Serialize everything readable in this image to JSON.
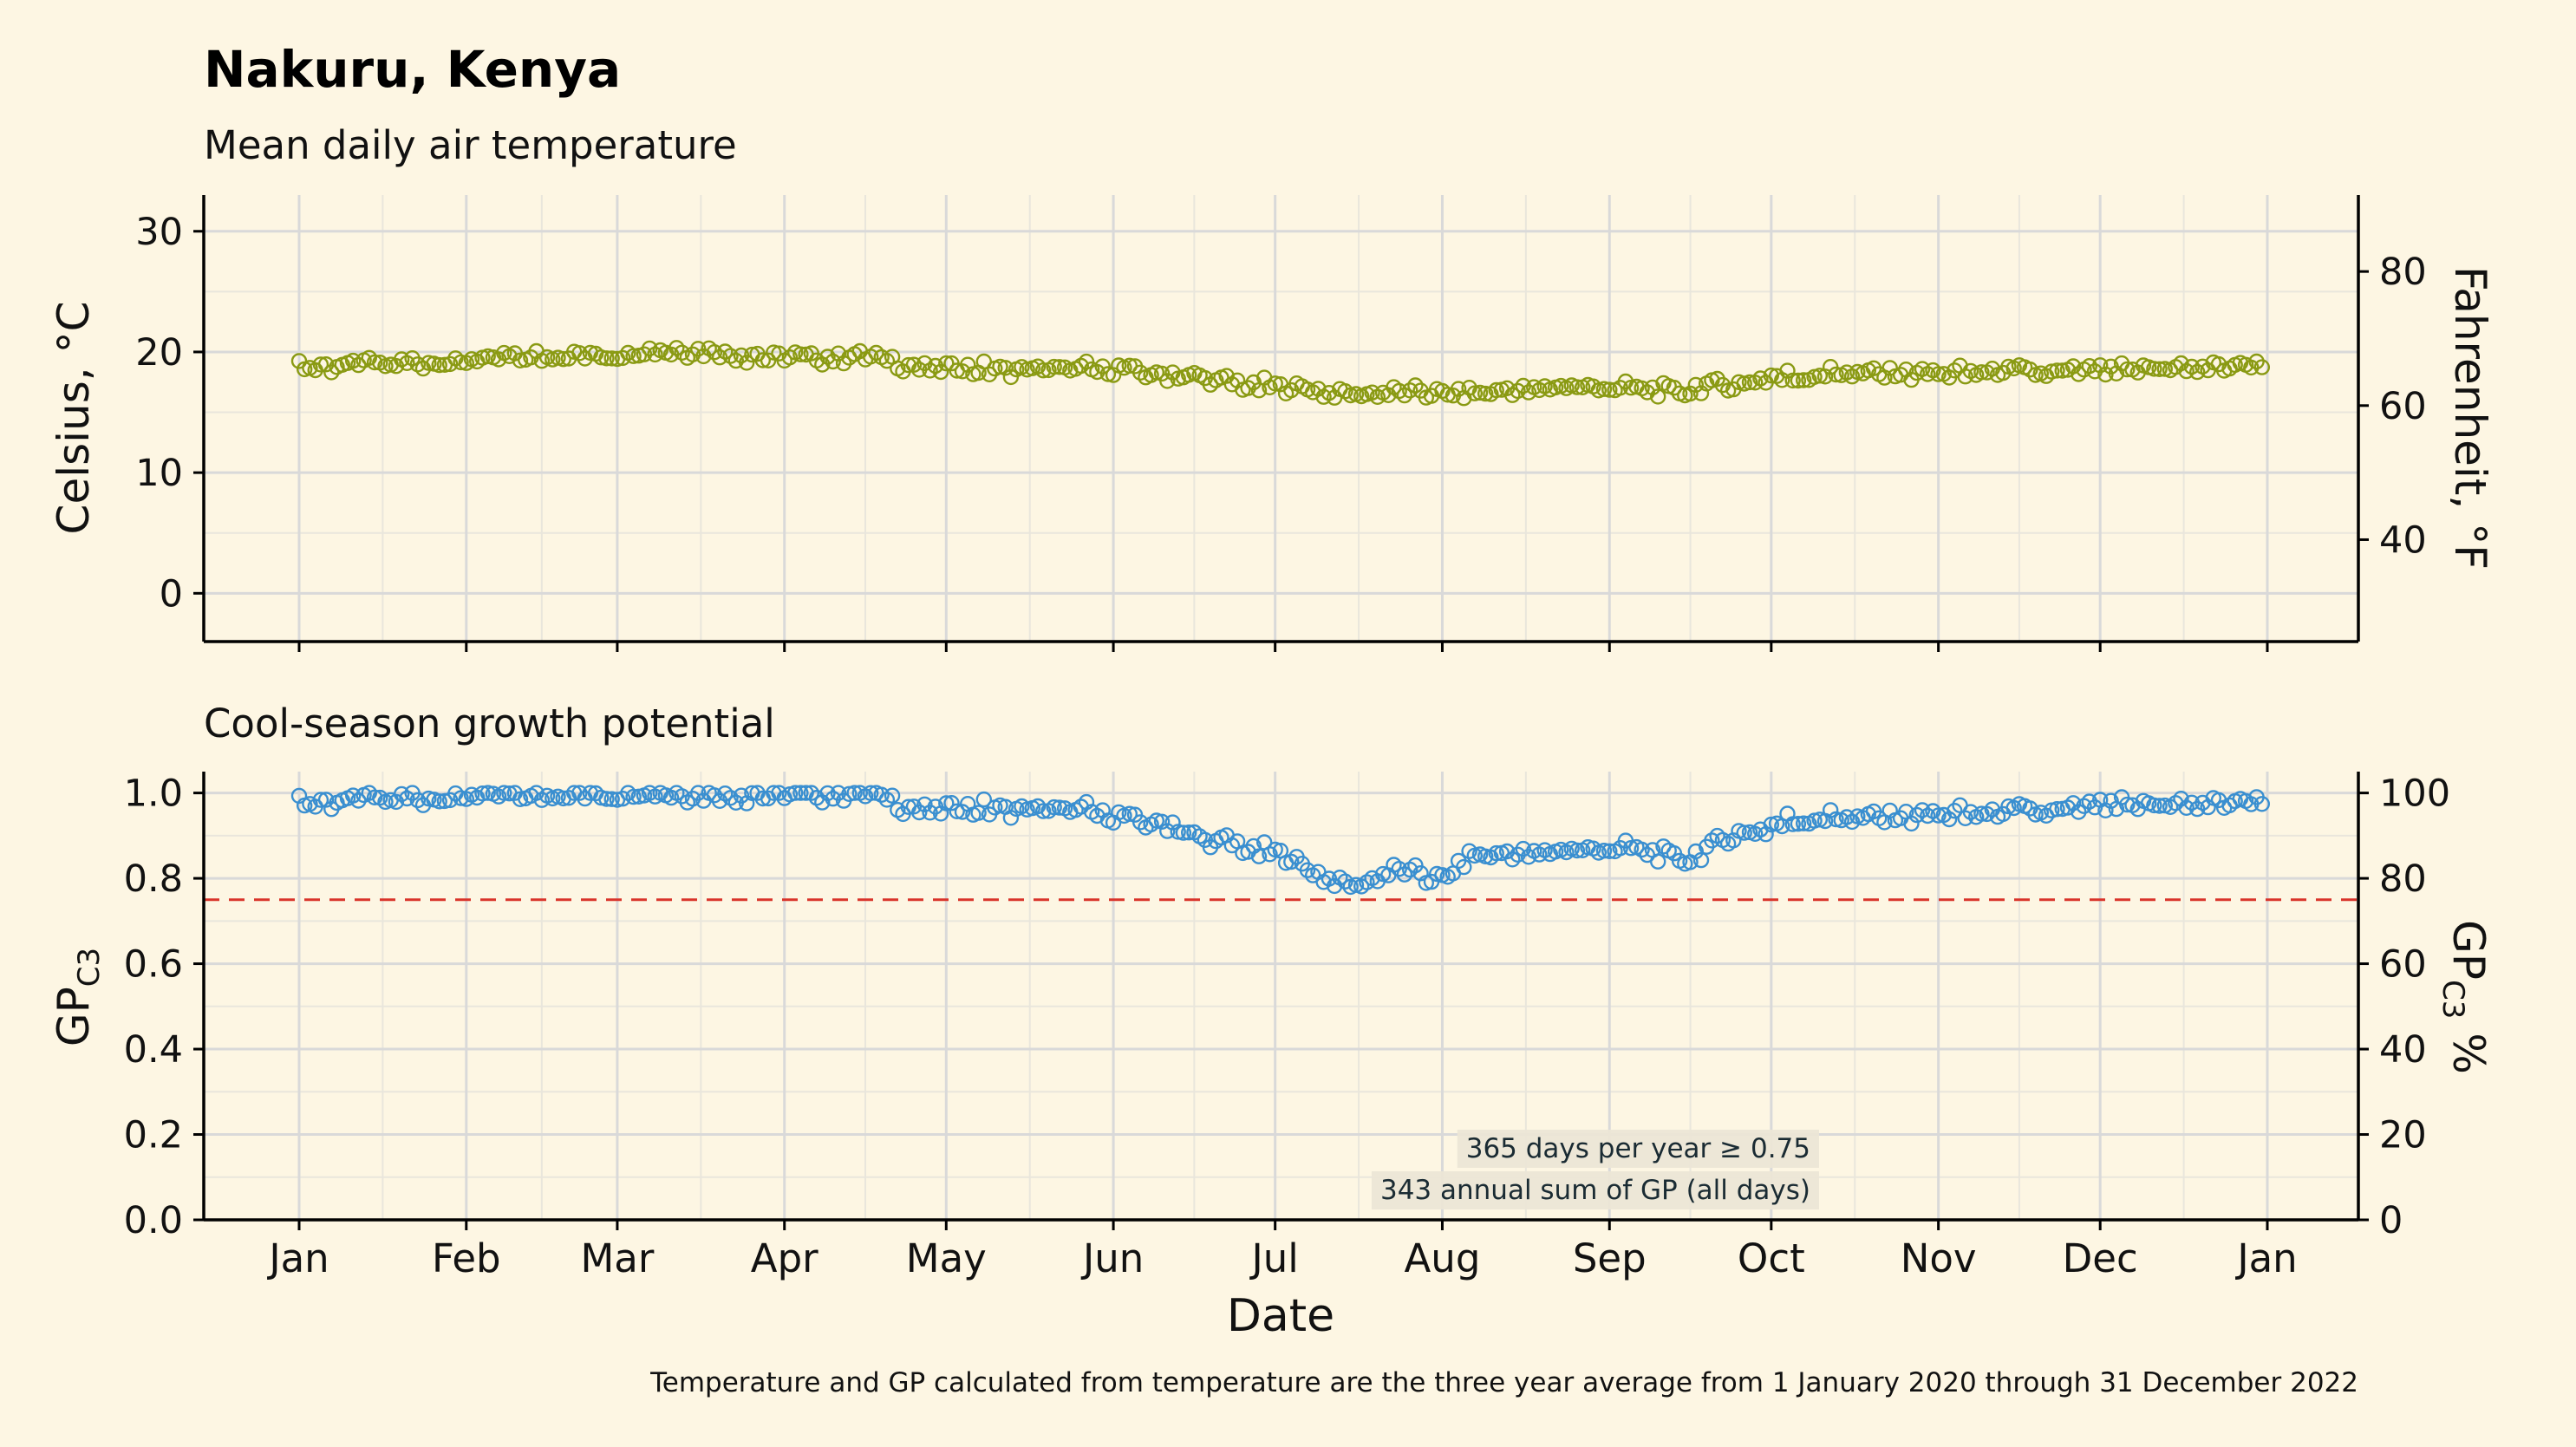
{
  "title": "Nakuru, Kenya",
  "footnote": "Temperature and GP calculated from temperature are the three year average from 1 January 2020 through 31 December 2022",
  "colors": {
    "background": "#fdf6e3",
    "temp": "#8a9a13",
    "gp": "#3a8fd0",
    "threshold": "#d9342b",
    "grid_major": "#d9d9d9",
    "grid_minor": "#e9e6dc"
  },
  "chart_data": [
    {
      "type": "scatter",
      "subtitle": "Mean daily air temperature",
      "ylabel": "Celsius, °C",
      "ylabel_right": "Fahrenheit, °F",
      "xlabel": "",
      "ylim": [
        -4,
        33
      ],
      "y_ticks": [
        "30",
        "20",
        "10",
        "0"
      ],
      "y_tick_values": [
        30,
        20,
        10,
        0
      ],
      "y_right_ticks": [
        "80",
        "60",
        "40"
      ],
      "y_right_tick_values": [
        80,
        60,
        40
      ],
      "x_months": [
        "Jan",
        "Feb",
        "Mar",
        "Apr",
        "May",
        "Jun",
        "Jul",
        "Aug",
        "Sep",
        "Oct",
        "Nov",
        "Dec",
        "Jan"
      ],
      "x_month_start_days": [
        1,
        32,
        60,
        91,
        121,
        152,
        182,
        213,
        244,
        274,
        305,
        335,
        366
      ],
      "series": [
        {
          "knots_day": [
            1,
            15,
            30,
            45,
            60,
            75,
            90,
            105,
            120,
            135,
            150,
            165,
            180,
            190,
            196,
            205,
            215,
            225,
            240,
            255,
            265,
            275,
            290,
            305,
            320,
            335,
            350,
            365
          ],
          "knots_celsius": [
            18.7,
            19.0,
            19.2,
            19.6,
            19.9,
            20.2,
            19.5,
            19.6,
            18.6,
            18.6,
            18.6,
            18.0,
            17.2,
            16.8,
            16.4,
            16.7,
            16.6,
            16.9,
            17.1,
            16.8,
            17.2,
            17.9,
            18.3,
            18.2,
            18.4,
            18.4,
            18.7,
            18.9
          ]
        }
      ]
    },
    {
      "type": "scatter",
      "subtitle": "Cool-season growth potential",
      "ylabel": "GP",
      "ylabel_sub": "C3",
      "ylabel_right": "GP",
      "ylabel_right_sub": "C3",
      "ylabel_right_suffix": " %",
      "xlabel": "Date",
      "ylim": [
        0,
        1.05
      ],
      "y_ticks": [
        "0.0",
        "0.2",
        "0.4",
        "0.6",
        "0.8",
        "1.0"
      ],
      "y_tick_values": [
        0,
        0.2,
        0.4,
        0.6,
        0.8,
        1.0
      ],
      "y_right_ticks": [
        "0",
        "20",
        "40",
        "60",
        "80",
        "100"
      ],
      "y_right_tick_values": [
        0,
        20,
        40,
        60,
        80,
        100
      ],
      "threshold": 0.75,
      "annotations": [
        "365 days per year ≥ 0.75",
        "343 annual sum of GP (all days)"
      ],
      "x_months": [
        "Jan",
        "Feb",
        "Mar",
        "Apr",
        "May",
        "Jun",
        "Jul",
        "Aug",
        "Sep",
        "Oct",
        "Nov",
        "Dec",
        "Jan"
      ],
      "x_month_start_days": [
        1,
        32,
        60,
        91,
        121,
        152,
        182,
        213,
        244,
        274,
        305,
        335,
        366
      ],
      "series": [
        {
          "knots_day": [
            1,
            15,
            30,
            45,
            60,
            75,
            90,
            105,
            118,
            130,
            145,
            160,
            170,
            182,
            190,
            196,
            205,
            212,
            220,
            230,
            245,
            258,
            270,
            280,
            295,
            310,
            325,
            340,
            352,
            365
          ],
          "knots_gp": [
            0.975,
            0.985,
            0.99,
            0.995,
            1.0,
            1.0,
            0.995,
            1.0,
            0.96,
            0.965,
            0.96,
            0.93,
            0.89,
            0.86,
            0.81,
            0.78,
            0.82,
            0.8,
            0.86,
            0.86,
            0.87,
            0.85,
            0.91,
            0.94,
            0.945,
            0.95,
            0.96,
            0.97,
            0.975,
            0.98
          ]
        }
      ]
    }
  ]
}
